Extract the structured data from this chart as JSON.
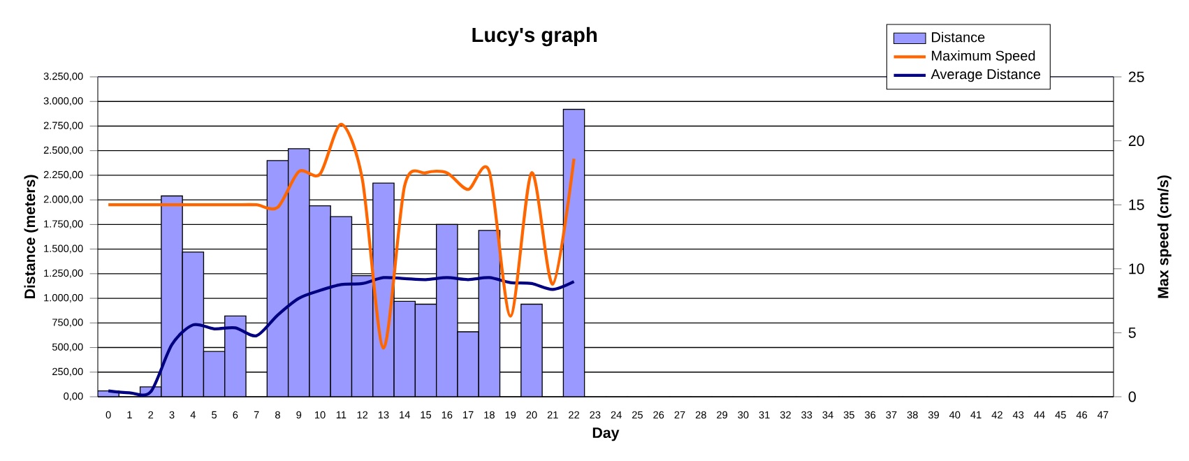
{
  "chart_data": {
    "type": "bar",
    "title": "Lucy's graph",
    "xlabel": "Day",
    "ylabel": "Distance (meters)",
    "y2label": "Max speed (cm/s)",
    "categories": [
      "0",
      "1",
      "2",
      "3",
      "4",
      "5",
      "6",
      "7",
      "8",
      "9",
      "10",
      "11",
      "12",
      "13",
      "14",
      "15",
      "16",
      "17",
      "18",
      "19",
      "20",
      "21",
      "22",
      "23",
      "24",
      "25",
      "26",
      "27",
      "28",
      "29",
      "30",
      "31",
      "32",
      "33",
      "34",
      "35",
      "36",
      "37",
      "38",
      "39",
      "40",
      "41",
      "42",
      "43",
      "44",
      "45",
      "46",
      "47"
    ],
    "series": [
      {
        "name": "Distance",
        "color": "#9999ff",
        "values": [
          60,
          null,
          100,
          2040,
          1470,
          460,
          820,
          null,
          2400,
          2520,
          1940,
          1830,
          1230,
          2170,
          970,
          940,
          1750,
          660,
          1690,
          null,
          940,
          null,
          2920,
          null,
          null,
          null,
          null,
          null,
          null,
          null,
          null,
          null,
          null,
          null,
          null,
          null,
          null,
          null,
          null,
          null,
          null,
          null,
          null,
          null,
          null,
          null,
          null,
          null
        ]
      },
      {
        "name": "Maximum Speed",
        "type": "line",
        "axis": "y2",
        "color": "#ff6600",
        "values": [
          15,
          15,
          15,
          15,
          15,
          15,
          15,
          15,
          14.8,
          17.6,
          17.4,
          21.3,
          17,
          3.8,
          16.5,
          17.5,
          17.5,
          16.2,
          17.6,
          6.3,
          17.5,
          8.8,
          18.6,
          null,
          null,
          null,
          null,
          null,
          null,
          null,
          null,
          null,
          null,
          null,
          null,
          null,
          null,
          null,
          null,
          null,
          null,
          null,
          null,
          null,
          null,
          null,
          null,
          null
        ]
      },
      {
        "name": "Average Distance",
        "type": "line",
        "color": "#000080",
        "values": [
          60,
          40,
          50,
          530,
          730,
          690,
          700,
          620,
          830,
          1000,
          1080,
          1140,
          1150,
          1210,
          1200,
          1190,
          1210,
          1190,
          1210,
          1160,
          1150,
          1090,
          1170,
          null,
          null,
          null,
          null,
          null,
          null,
          null,
          null,
          null,
          null,
          null,
          null,
          null,
          null,
          null,
          null,
          null,
          null,
          null,
          null,
          null,
          null,
          null,
          null,
          null
        ]
      }
    ],
    "ylim": [
      0,
      3250
    ],
    "yticks": [
      {
        "value": 0,
        "label": "0,00"
      },
      {
        "value": 250,
        "label": "250,00"
      },
      {
        "value": 500,
        "label": "500,00"
      },
      {
        "value": 750,
        "label": "750,00"
      },
      {
        "value": 1000,
        "label": "1.000,00"
      },
      {
        "value": 1250,
        "label": "1.250,00"
      },
      {
        "value": 1500,
        "label": "1.500,00"
      },
      {
        "value": 1750,
        "label": "1.750,00"
      },
      {
        "value": 2000,
        "label": "2.000,00"
      },
      {
        "value": 2250,
        "label": "2.250,00"
      },
      {
        "value": 2500,
        "label": "2.500,00"
      },
      {
        "value": 2750,
        "label": "2.750,00"
      },
      {
        "value": 3000,
        "label": "3.000,00"
      },
      {
        "value": 3250,
        "label": "3.250,00"
      }
    ],
    "y2lim": [
      0,
      25
    ],
    "y2ticks": [
      0,
      5,
      10,
      15,
      20,
      25
    ],
    "grid": "y",
    "legend": "top right"
  }
}
